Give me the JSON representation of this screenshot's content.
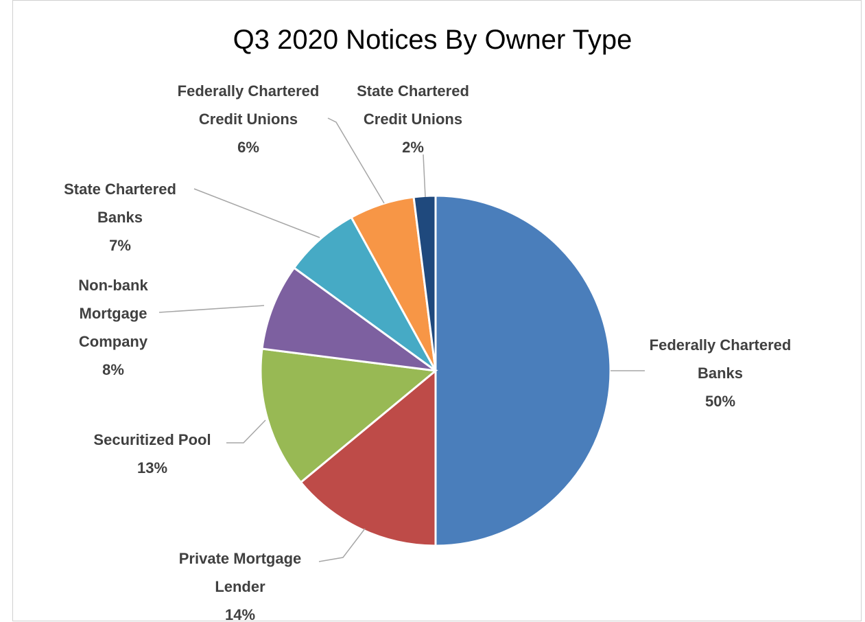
{
  "chart_data": {
    "type": "pie",
    "title": "Q3 2020 Notices By Owner Type",
    "categories": [
      "Federally Chartered Banks",
      "Private Mortgage Lender",
      "Securitized Pool",
      "Non-bank Mortgage Company",
      "State Chartered Banks",
      "Federally Chartered Credit Unions",
      "State Chartered Credit Unions"
    ],
    "values": [
      50,
      14,
      13,
      8,
      7,
      6,
      2
    ],
    "value_labels": [
      "50%",
      "14%",
      "13%",
      "8%",
      "7%",
      "6%",
      "2%"
    ],
    "colors": [
      "#4a7ebb",
      "#be4b48",
      "#98b954",
      "#7d60a0",
      "#46aac5",
      "#f79646",
      "#1f497d"
    ]
  }
}
